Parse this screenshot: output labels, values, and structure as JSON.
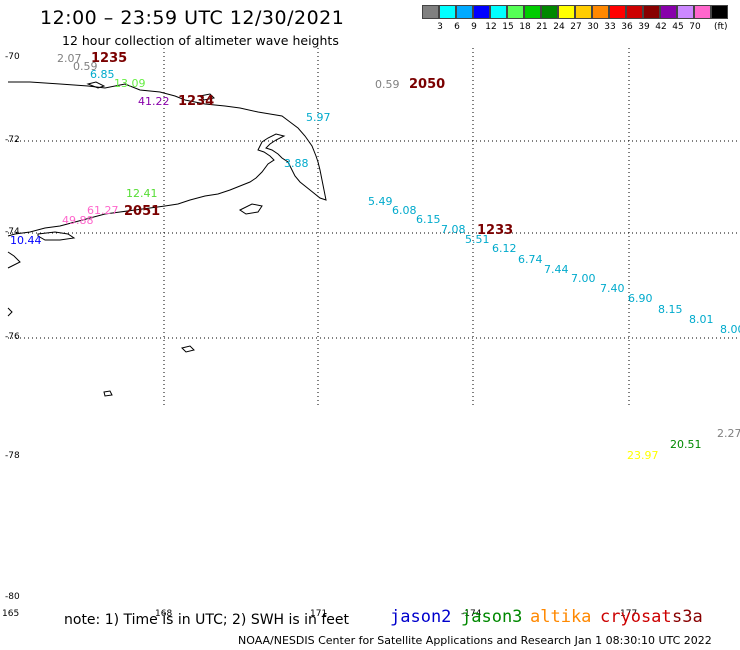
{
  "title": "12:00 – 23:59 UTC 12/30/2021",
  "subtitle": "12 hour collection of altimeter wave heights",
  "scale": {
    "colors": [
      "#808080",
      "#00ffff",
      "#00aaff",
      "#0000ff",
      "#00ffff",
      "#55ff55",
      "#00cc00",
      "#008800",
      "#ffff00",
      "#ffcc00",
      "#ff8800",
      "#ff0000",
      "#cc0000",
      "#880000",
      "#8800aa",
      "#cc88ff",
      "#ff66cc",
      "#000000"
    ],
    "ticks": [
      "3",
      "6",
      "9",
      "12",
      "15",
      "18",
      "21",
      "24",
      "27",
      "30",
      "33",
      "36",
      "39",
      "42",
      "45",
      "70"
    ],
    "unit": "(ft)"
  },
  "lat_labels": [
    "-70",
    "-72",
    "-74",
    "-76",
    "-78",
    "-80"
  ],
  "lon_labels": [
    "165",
    "168",
    "171",
    "-174",
    "177"
  ],
  "note": "note: 1) Time is in UTC; 2) SWH is in feet",
  "satellites": [
    {
      "name": "jason2",
      "color": "#0000cc"
    },
    {
      "name": "jason3",
      "color": "#008800"
    },
    {
      "name": "altika",
      "color": "#ff8800"
    },
    {
      "name": "cryosat",
      "color": "#cc0000"
    },
    {
      "name": "s3a",
      "color": "#880000"
    }
  ],
  "credit": "NOAA/NESDIS Center for Satellite Applications and Research   Jan  1 08:30:10 UTC 2022",
  "time_labels": [
    "1235",
    "1234",
    "2050",
    "2051",
    "1233"
  ],
  "wave_heights": [
    {
      "v": "2.07",
      "c": "#808080"
    },
    {
      "v": "0.59",
      "c": "#808080"
    },
    {
      "v": "6.85",
      "c": "#00aacc"
    },
    {
      "v": "13.09",
      "c": "#66ee44"
    },
    {
      "v": "41.22",
      "c": "#8800aa"
    },
    {
      "v": "0.59",
      "c": "#808080"
    },
    {
      "v": "5.97",
      "c": "#00aacc"
    },
    {
      "v": "3.88",
      "c": "#00aacc"
    },
    {
      "v": "12.41",
      "c": "#55dd33"
    },
    {
      "v": "61.27",
      "c": "#ff66cc"
    },
    {
      "v": "49.88",
      "c": "#ff66cc"
    },
    {
      "v": "10.44",
      "c": "#0000ff"
    },
    {
      "v": "5.49",
      "c": "#00aacc"
    },
    {
      "v": "6.08",
      "c": "#00aacc"
    },
    {
      "v": "6.15",
      "c": "#00aacc"
    },
    {
      "v": "7.08",
      "c": "#00aacc"
    },
    {
      "v": "5.51",
      "c": "#00aacc"
    },
    {
      "v": "6.12",
      "c": "#00aacc"
    },
    {
      "v": "6.74",
      "c": "#00aacc"
    },
    {
      "v": "7.44",
      "c": "#00aacc"
    },
    {
      "v": "7.00",
      "c": "#00aacc"
    },
    {
      "v": "7.40",
      "c": "#00aacc"
    },
    {
      "v": "6.90",
      "c": "#00aacc"
    },
    {
      "v": "8.15",
      "c": "#00aacc"
    },
    {
      "v": "8.01",
      "c": "#00aacc"
    },
    {
      "v": "8.00",
      "c": "#00aacc"
    },
    {
      "v": "2.27",
      "c": "#808080"
    },
    {
      "v": "20.51",
      "c": "#008800"
    },
    {
      "v": "23.97",
      "c": "#ffff00"
    }
  ]
}
